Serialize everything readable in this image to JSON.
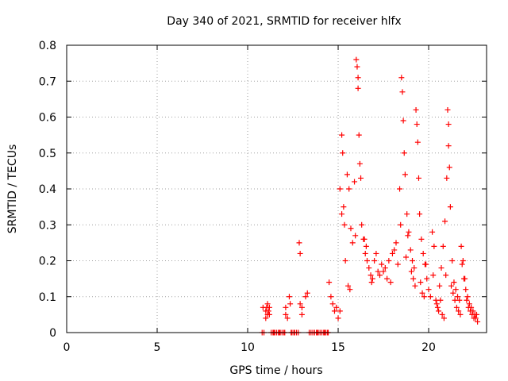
{
  "chart_data": {
    "type": "scatter",
    "title": "Day 340 of 2021, SRMTID for receiver hlfx",
    "xlabel": "GPS time / hours",
    "ylabel": "SRMTID / TECUs",
    "xlim": [
      0,
      23.2
    ],
    "ylim": [
      0,
      0.8
    ],
    "x_ticks": [
      0,
      5,
      10,
      15,
      20
    ],
    "x_tick_labels": [
      "0",
      "5",
      "10",
      "15",
      "20"
    ],
    "y_ticks": [
      0,
      0.1,
      0.2,
      0.3,
      0.4,
      0.5,
      0.6,
      0.7,
      0.8
    ],
    "y_tick_labels": [
      "0",
      "0.1",
      "0.2",
      "0.3",
      "0.4",
      "0.5",
      "0.6",
      "0.7",
      "0.8"
    ],
    "grid": true,
    "marker": "plus",
    "color": "#ff0000",
    "series": [
      {
        "name": "SRMTID",
        "x": [
          10.8,
          10.9,
          11.0,
          11.05,
          11.1,
          11.15,
          11.2,
          11.0,
          11.1,
          11.2,
          11.3,
          11.4,
          11.5,
          11.6,
          11.7,
          11.8,
          11.9,
          12.0,
          12.1,
          12.2,
          12.05,
          12.1,
          12.3,
          12.35,
          12.4,
          12.6,
          12.7,
          12.8,
          12.85,
          12.9,
          12.9,
          13.0,
          13.0,
          13.2,
          13.3,
          13.4,
          13.5,
          13.6,
          13.7,
          13.8,
          13.9,
          14.0,
          14.1,
          14.2,
          14.3,
          14.4,
          14.5,
          14.6,
          14.7,
          14.8,
          14.9,
          15.0,
          15.1,
          15.2,
          15.1,
          15.2,
          15.25,
          15.3,
          15.35,
          15.4,
          15.5,
          15.6,
          15.7,
          15.8,
          15.9,
          16.0,
          16.05,
          16.1,
          16.1,
          16.15,
          16.2,
          16.25,
          16.3,
          16.4,
          16.5,
          16.6,
          16.7,
          16.8,
          16.9,
          17.0,
          17.2,
          17.4,
          17.6,
          17.8,
          18.0,
          18.2,
          18.4,
          18.5,
          18.55,
          18.6,
          18.65,
          18.7,
          18.8,
          18.9,
          19.0,
          19.1,
          19.2,
          19.3,
          19.35,
          19.4,
          19.45,
          19.5,
          19.6,
          19.7,
          19.8,
          19.9,
          20.0,
          20.1,
          20.2,
          20.3,
          20.4,
          20.5,
          20.6,
          20.7,
          20.8,
          20.9,
          21.0,
          21.05,
          21.1,
          21.1,
          21.15,
          21.2,
          21.3,
          21.4,
          21.5,
          21.6,
          21.7,
          21.8,
          21.9,
          22.0,
          22.1,
          22.2,
          22.3,
          22.4,
          22.5,
          22.6,
          22.7,
          10.85,
          11.45,
          11.75,
          12.45,
          12.55,
          13.85,
          14.25,
          14.45,
          15.55,
          15.65,
          15.95,
          16.45,
          16.55,
          16.85,
          17.1,
          17.3,
          17.5,
          17.7,
          17.9,
          18.1,
          18.3,
          18.45,
          18.75,
          18.85,
          19.05,
          19.15,
          19.25,
          19.55,
          19.65,
          19.75,
          19.85,
          20.25,
          20.45,
          20.55,
          20.65,
          20.75,
          20.85,
          20.95,
          21.25,
          21.35,
          21.45,
          21.55,
          21.65,
          21.75,
          21.85,
          21.95,
          22.05,
          22.15,
          22.25,
          22.35,
          22.45,
          22.55,
          22.65
        ],
        "y": [
          0.0,
          0.0,
          0.06,
          0.07,
          0.05,
          0.06,
          0.07,
          0.04,
          0.08,
          0.05,
          0.0,
          0.0,
          0.0,
          0.0,
          0.0,
          0.0,
          0.0,
          0.0,
          0.05,
          0.04,
          0.0,
          0.07,
          0.1,
          0.08,
          0.0,
          0.0,
          0.0,
          0.0,
          0.25,
          0.22,
          0.08,
          0.07,
          0.05,
          0.1,
          0.11,
          0.0,
          0.0,
          0.0,
          0.0,
          0.0,
          0.0,
          0.0,
          0.0,
          0.0,
          0.0,
          0.0,
          0.14,
          0.1,
          0.08,
          0.06,
          0.07,
          0.04,
          0.06,
          0.33,
          0.4,
          0.55,
          0.5,
          0.35,
          0.3,
          0.2,
          0.44,
          0.4,
          0.29,
          0.25,
          0.42,
          0.76,
          0.74,
          0.71,
          0.68,
          0.55,
          0.47,
          0.43,
          0.3,
          0.26,
          0.22,
          0.2,
          0.18,
          0.16,
          0.15,
          0.2,
          0.17,
          0.19,
          0.18,
          0.2,
          0.22,
          0.25,
          0.4,
          0.71,
          0.67,
          0.59,
          0.5,
          0.44,
          0.33,
          0.28,
          0.23,
          0.2,
          0.18,
          0.62,
          0.58,
          0.53,
          0.43,
          0.33,
          0.26,
          0.22,
          0.19,
          0.15,
          0.12,
          0.1,
          0.28,
          0.24,
          0.09,
          0.07,
          0.13,
          0.18,
          0.24,
          0.31,
          0.43,
          0.62,
          0.58,
          0.52,
          0.46,
          0.35,
          0.2,
          0.14,
          0.12,
          0.1,
          0.09,
          0.24,
          0.2,
          0.15,
          0.09,
          0.07,
          0.06,
          0.05,
          0.04,
          0.04,
          0.03,
          0.07,
          0.0,
          0.0,
          0.0,
          0.0,
          0.0,
          0.0,
          0.0,
          0.13,
          0.12,
          0.27,
          0.26,
          0.24,
          0.14,
          0.22,
          0.16,
          0.17,
          0.15,
          0.14,
          0.23,
          0.19,
          0.3,
          0.21,
          0.27,
          0.17,
          0.15,
          0.13,
          0.14,
          0.11,
          0.1,
          0.19,
          0.16,
          0.08,
          0.06,
          0.09,
          0.05,
          0.04,
          0.16,
          0.13,
          0.11,
          0.09,
          0.07,
          0.06,
          0.05,
          0.19,
          0.15,
          0.12,
          0.1,
          0.08,
          0.07,
          0.06,
          0.05,
          0.05
        ]
      }
    ]
  }
}
